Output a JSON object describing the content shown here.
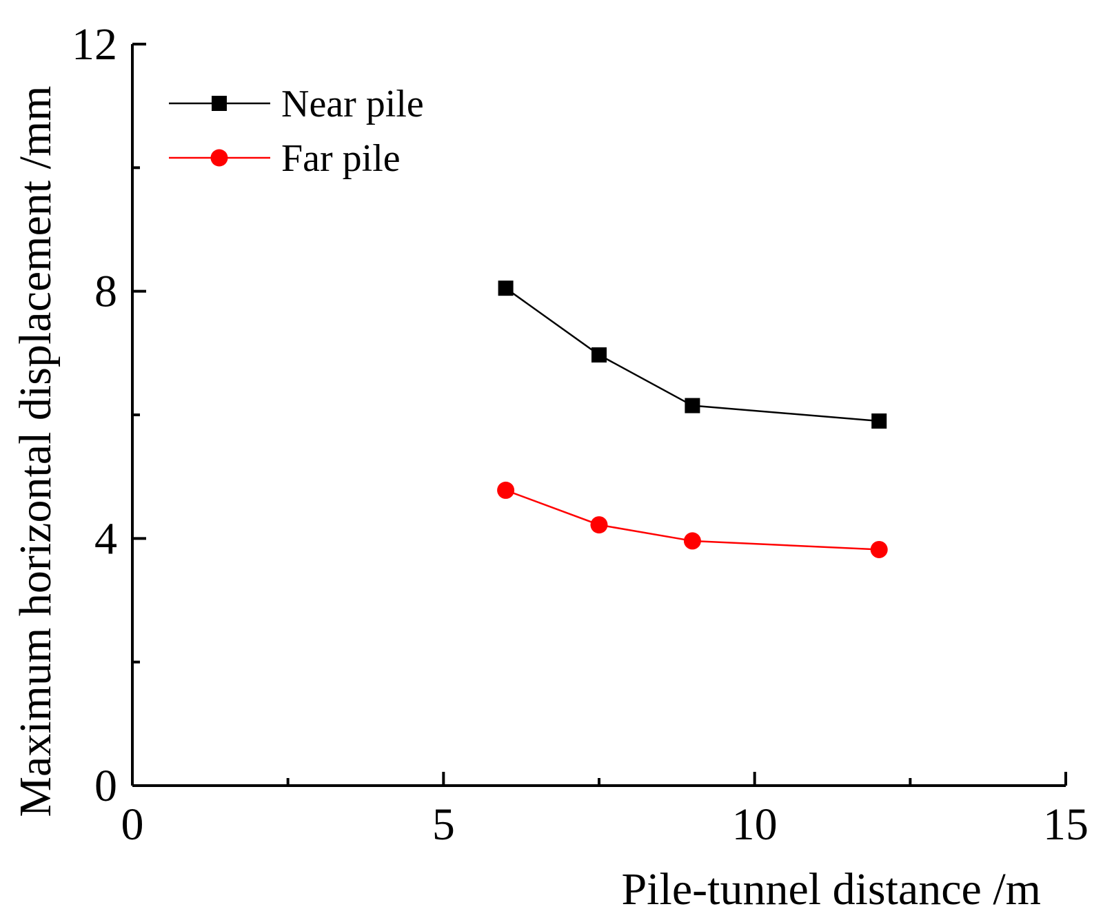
{
  "chart_data": {
    "type": "line",
    "title": "",
    "xlabel": "Pile-tunnel distance /m",
    "ylabel": "Maximum horizontal displacement /mm",
    "xlim": [
      0,
      15
    ],
    "ylim": [
      0,
      12
    ],
    "x_ticks": [
      0,
      5,
      10,
      15
    ],
    "x_tick_labels": [
      "0",
      "5",
      "10",
      "15"
    ],
    "x_minor_ticks": [
      2.5,
      7.5,
      12.5
    ],
    "y_ticks": [
      0,
      4,
      8,
      12
    ],
    "y_tick_labels": [
      "0",
      "4",
      "8",
      "12"
    ],
    "y_minor_ticks": [
      2,
      6,
      10
    ],
    "grid": false,
    "legend_position": "top-left",
    "series": [
      {
        "name": "Near pile",
        "marker": "square",
        "color": "#000000",
        "x": [
          6,
          7.5,
          9,
          12
        ],
        "y": [
          8.05,
          6.97,
          6.15,
          5.9
        ]
      },
      {
        "name": "Far pile",
        "marker": "circle",
        "color": "#ff0000",
        "x": [
          6,
          7.5,
          9,
          12
        ],
        "y": [
          4.78,
          4.22,
          3.96,
          3.82
        ]
      }
    ]
  }
}
